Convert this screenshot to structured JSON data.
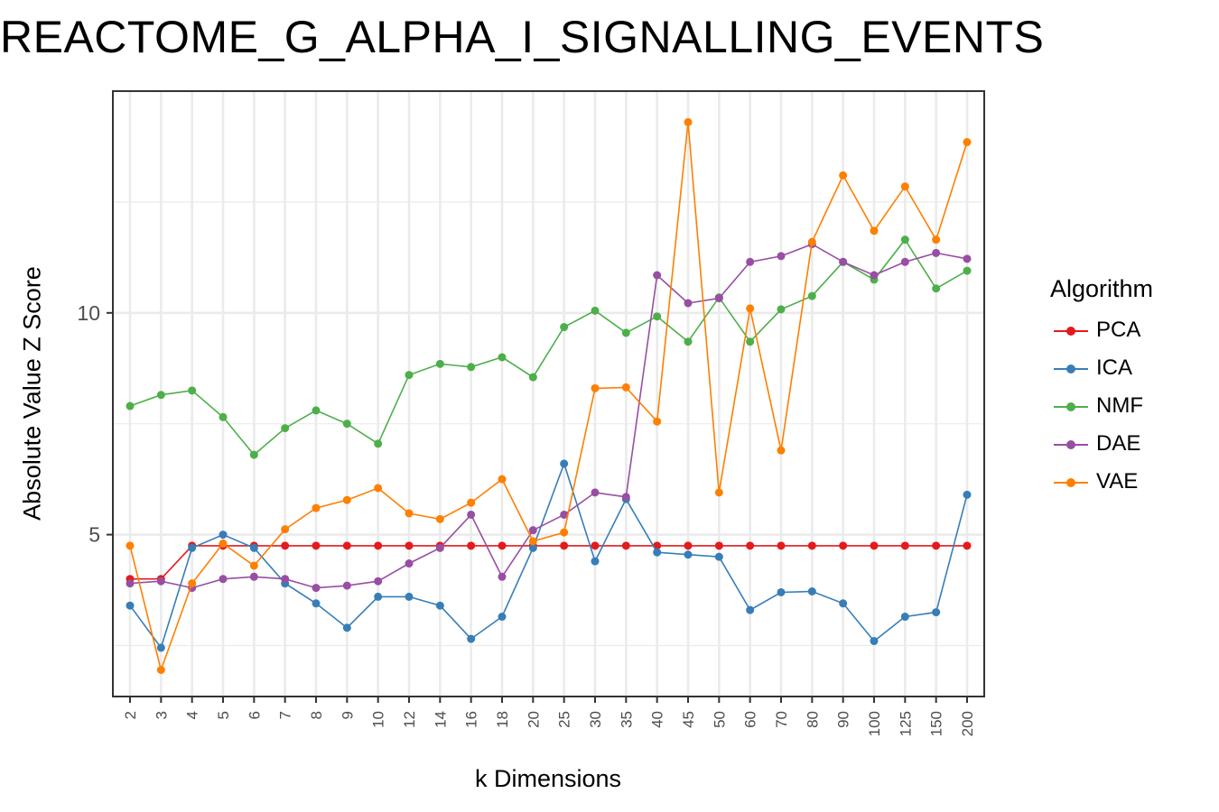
{
  "chart_data": {
    "type": "line",
    "title": "REACTOME_G_ALPHA_I_SIGNALLING_EVENTS",
    "xlabel": "k Dimensions",
    "ylabel": "Absolute Value Z Score",
    "x": [
      "2",
      "3",
      "4",
      "5",
      "6",
      "7",
      "8",
      "9",
      "10",
      "12",
      "14",
      "16",
      "18",
      "20",
      "25",
      "30",
      "35",
      "40",
      "45",
      "50",
      "60",
      "70",
      "80",
      "90",
      "100",
      "125",
      "150",
      "200"
    ],
    "y_ticks": [
      5,
      10
    ],
    "ylim": [
      1.35,
      15.0
    ],
    "grid": true,
    "legend_title": "Algorithm",
    "legend_position": "right",
    "series": [
      {
        "name": "PCA",
        "color": "#E41A1C",
        "values": [
          4.0,
          4.0,
          4.75,
          4.75,
          4.75,
          4.75,
          4.75,
          4.75,
          4.75,
          4.75,
          4.75,
          4.75,
          4.75,
          4.75,
          4.75,
          4.75,
          4.75,
          4.75,
          4.75,
          4.75,
          4.75,
          4.75,
          4.75,
          4.75,
          4.75,
          4.75,
          4.75,
          4.75
        ]
      },
      {
        "name": "ICA",
        "color": "#377EB8",
        "values": [
          3.4,
          2.45,
          4.7,
          5.0,
          4.7,
          3.9,
          3.45,
          2.9,
          3.6,
          3.6,
          3.4,
          2.65,
          3.15,
          4.7,
          6.6,
          4.4,
          5.8,
          4.6,
          4.55,
          4.5,
          3.3,
          3.7,
          3.72,
          3.45,
          2.6,
          3.15,
          3.25,
          5.9
        ]
      },
      {
        "name": "NMF",
        "color": "#4DAF4A",
        "values": [
          7.9,
          8.15,
          8.25,
          7.65,
          6.8,
          7.4,
          7.8,
          7.5,
          7.05,
          8.6,
          8.85,
          8.78,
          9.0,
          8.55,
          9.68,
          10.05,
          9.55,
          9.92,
          9.35,
          10.35,
          9.35,
          10.08,
          10.38,
          11.15,
          10.75,
          11.65,
          10.55,
          10.95
        ]
      },
      {
        "name": "DAE",
        "color": "#984EA3",
        "values": [
          3.9,
          3.95,
          3.8,
          4.0,
          4.05,
          4.0,
          3.8,
          3.85,
          3.95,
          4.35,
          4.7,
          5.45,
          4.05,
          5.1,
          5.45,
          5.95,
          5.85,
          10.85,
          10.22,
          10.33,
          11.15,
          11.28,
          11.55,
          11.15,
          10.85,
          11.15,
          11.35,
          11.22
        ]
      },
      {
        "name": "VAE",
        "color": "#FF7F00",
        "values": [
          4.75,
          1.95,
          3.9,
          4.8,
          4.3,
          5.12,
          5.6,
          5.78,
          6.05,
          5.48,
          5.35,
          5.72,
          6.25,
          4.85,
          5.05,
          8.3,
          8.32,
          7.55,
          14.3,
          5.95,
          10.1,
          6.9,
          11.6,
          13.1,
          11.85,
          12.85,
          11.65,
          13.85
        ]
      }
    ]
  }
}
